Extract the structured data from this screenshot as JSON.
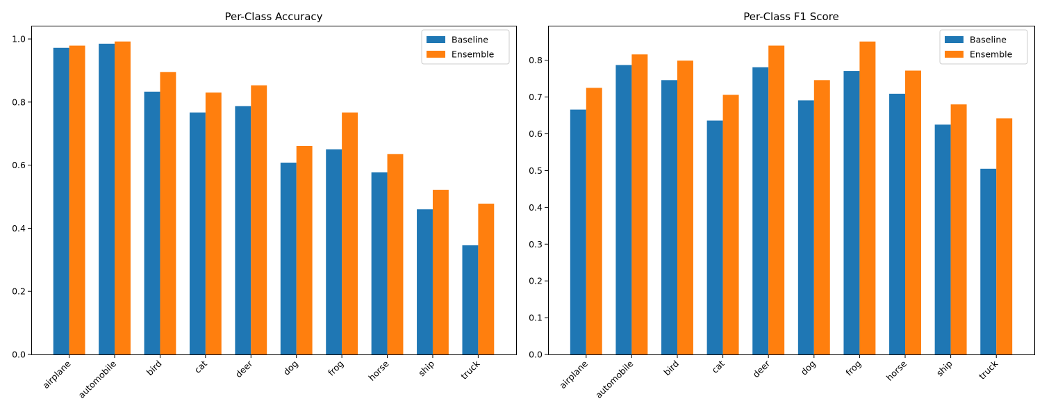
{
  "chart_data": [
    {
      "type": "bar",
      "title": "Per-Class Accuracy",
      "xlabel": "",
      "ylabel": "",
      "categories": [
        "airplane",
        "automobile",
        "bird",
        "cat",
        "deer",
        "dog",
        "frog",
        "horse",
        "ship",
        "truck"
      ],
      "series": [
        {
          "name": "Baseline",
          "color": "#1f77b4",
          "values": [
            0.972,
            0.985,
            0.833,
            0.767,
            0.787,
            0.608,
            0.65,
            0.577,
            0.46,
            0.346
          ]
        },
        {
          "name": "Ensemble",
          "color": "#ff7f0e",
          "values": [
            0.979,
            0.992,
            0.895,
            0.83,
            0.853,
            0.661,
            0.767,
            0.635,
            0.522,
            0.478
          ]
        }
      ],
      "ylim": [
        0,
        1.042
      ],
      "yticks": [
        0.0,
        0.2,
        0.4,
        0.6,
        0.8,
        1.0
      ],
      "ytick_labels": [
        "0.0",
        "0.2",
        "0.4",
        "0.6",
        "0.8",
        "1.0"
      ],
      "legend_position": "top-right",
      "grid": false
    },
    {
      "type": "bar",
      "title": "Per-Class F1 Score",
      "xlabel": "",
      "ylabel": "",
      "categories": [
        "airplane",
        "automobile",
        "bird",
        "cat",
        "deer",
        "dog",
        "frog",
        "horse",
        "ship",
        "truck"
      ],
      "series": [
        {
          "name": "Baseline",
          "color": "#1f77b4",
          "values": [
            0.666,
            0.787,
            0.746,
            0.636,
            0.781,
            0.691,
            0.771,
            0.709,
            0.625,
            0.505
          ]
        },
        {
          "name": "Ensemble",
          "color": "#ff7f0e",
          "values": [
            0.725,
            0.816,
            0.799,
            0.706,
            0.84,
            0.746,
            0.851,
            0.772,
            0.68,
            0.642
          ]
        }
      ],
      "ylim": [
        0,
        0.894
      ],
      "yticks": [
        0.0,
        0.1,
        0.2,
        0.3,
        0.4,
        0.5,
        0.6,
        0.7,
        0.8
      ],
      "ytick_labels": [
        "0.0",
        "0.1",
        "0.2",
        "0.3",
        "0.4",
        "0.5",
        "0.6",
        "0.7",
        "0.8"
      ],
      "legend_position": "top-right",
      "grid": false
    }
  ]
}
